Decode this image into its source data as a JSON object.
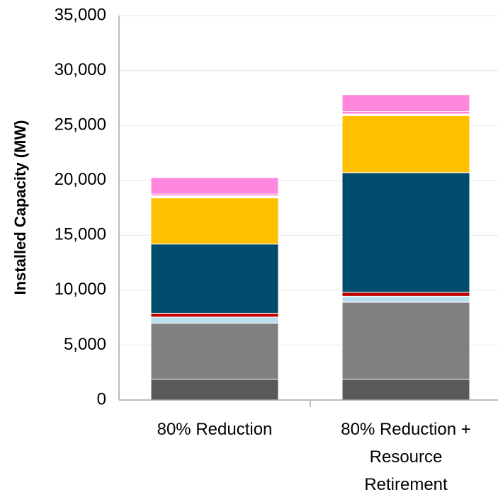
{
  "chart_data": {
    "type": "bar",
    "stacked": true,
    "categories": [
      [
        "80% Reduction"
      ],
      [
        "80% Reduction +",
        "Resource",
        "Retirement"
      ]
    ],
    "ylabel": "Installed Capacity (MW)",
    "xlabel": "",
    "ylim": [
      0,
      35000
    ],
    "yticks": [
      0,
      5000,
      10000,
      15000,
      20000,
      25000,
      30000,
      35000
    ],
    "ytick_labels": [
      "0",
      "5,000",
      "10,000",
      "15,000",
      "20,000",
      "25,000",
      "30,000",
      "35,000"
    ],
    "grid": true,
    "legend": "none",
    "series": [
      {
        "color": "#595959",
        "values": [
          1900,
          1900
        ]
      },
      {
        "color": "#808080",
        "values": [
          5100,
          7000
        ]
      },
      {
        "color": "#b8e0f0",
        "values": [
          550,
          550
        ]
      },
      {
        "color": "#c00000",
        "values": [
          350,
          350
        ]
      },
      {
        "color": "#004c6d",
        "values": [
          6300,
          10900
        ]
      },
      {
        "color": "#ffc000",
        "values": [
          4200,
          5200
        ]
      },
      {
        "color": "#ffffff",
        "values": [
          200,
          150
        ]
      },
      {
        "color": "#ff66cc",
        "values": [
          150,
          200
        ]
      },
      {
        "color": "#ff88dd",
        "values": [
          1500,
          1550
        ]
      }
    ]
  }
}
